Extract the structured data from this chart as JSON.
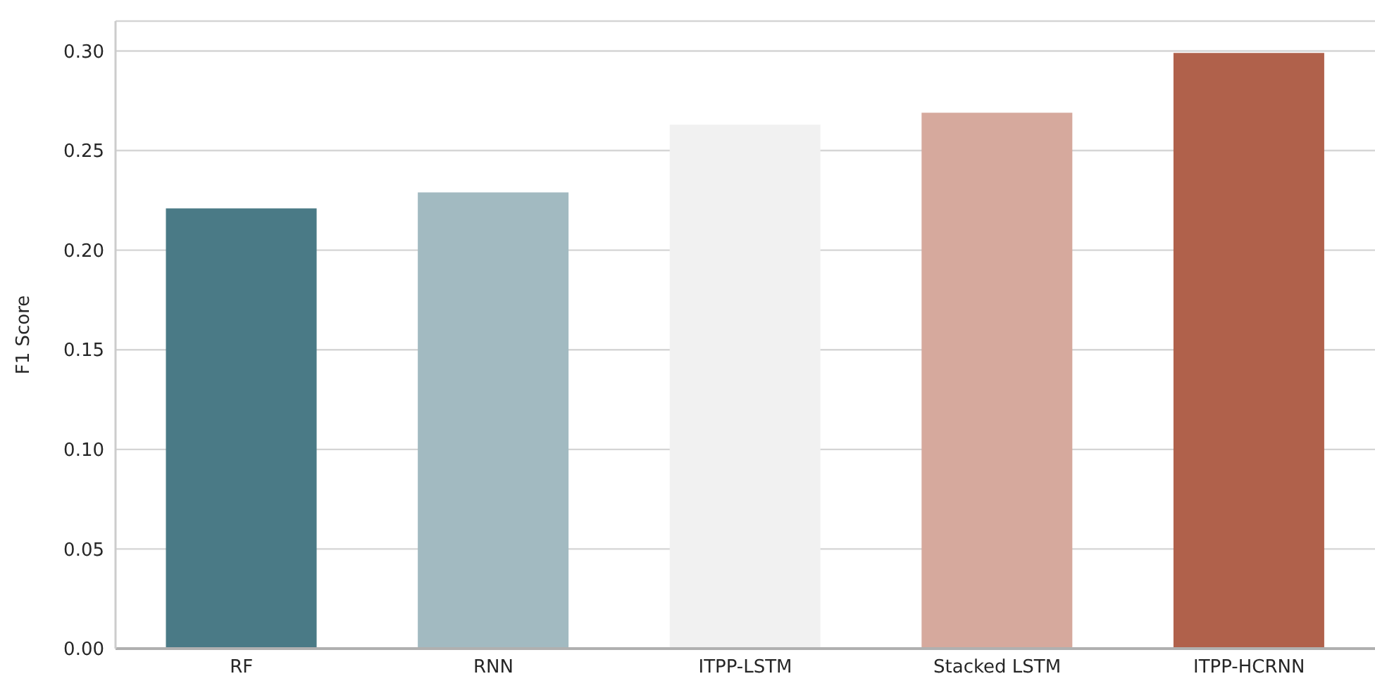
{
  "chart_data": {
    "type": "bar",
    "ylabel": "F1 Score",
    "categories": [
      "RF",
      "RNN",
      "ITPP-LSTM",
      "Stacked LSTM",
      "ITPP-HCRNN"
    ],
    "values": [
      0.221,
      0.229,
      0.263,
      0.269,
      0.299
    ],
    "colors": [
      "#4a7a86",
      "#a2bac1",
      "#f1f1f1",
      "#d6a99d",
      "#b0614b"
    ],
    "ylim": [
      0,
      0.315
    ],
    "yticks": [
      {
        "value": 0,
        "label": "0.00"
      },
      {
        "value": 0.05,
        "label": "0.05"
      },
      {
        "value": 0.1,
        "label": "0.10"
      },
      {
        "value": 0.15,
        "label": "0.15"
      },
      {
        "value": 0.2,
        "label": "0.20"
      },
      {
        "value": 0.25,
        "label": "0.25"
      },
      {
        "value": 0.3,
        "label": "0.30"
      }
    ],
    "grid": "y"
  }
}
